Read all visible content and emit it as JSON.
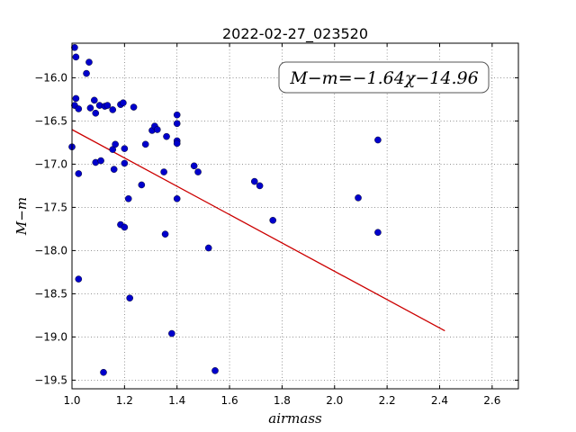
{
  "chart_data": {
    "type": "scatter",
    "title": "2022-02-27_023520",
    "xlabel": "airmass",
    "ylabel": "M−m",
    "xlim": [
      1.0,
      2.7
    ],
    "ylim": [
      -19.6,
      -15.6
    ],
    "xticks": [
      1.0,
      1.2,
      1.4,
      1.6,
      1.8,
      2.0,
      2.2,
      2.4,
      2.6
    ],
    "xtick_labels": [
      "1.0",
      "1.2",
      "1.4",
      "1.6",
      "1.8",
      "2.0",
      "2.2",
      "2.4",
      "2.6"
    ],
    "yticks": [
      -16.0,
      -16.5,
      -17.0,
      -17.5,
      -18.0,
      -18.5,
      -19.0,
      -19.5
    ],
    "ytick_labels": [
      "−16.0",
      "−16.5",
      "−17.0",
      "−17.5",
      "−18.0",
      "−18.5",
      "−19.0",
      "−19.5"
    ],
    "grid": true,
    "annotation": "M−m=−1.64χ−14.96",
    "fit": {
      "slope": -1.64,
      "intercept": -14.96,
      "x_range": [
        1.0,
        2.42
      ],
      "color": "#cc0000"
    },
    "marker_color": "#0000cc",
    "points": [
      {
        "x": 1.01,
        "y": -15.65
      },
      {
        "x": 1.015,
        "y": -15.76
      },
      {
        "x": 1.055,
        "y": -15.95
      },
      {
        "x": 1.065,
        "y": -15.82
      },
      {
        "x": 1.015,
        "y": -16.24
      },
      {
        "x": 1.01,
        "y": -16.32
      },
      {
        "x": 1.025,
        "y": -16.36
      },
      {
        "x": 1.07,
        "y": -16.35
      },
      {
        "x": 1.085,
        "y": -16.26
      },
      {
        "x": 1.09,
        "y": -16.41
      },
      {
        "x": 1.105,
        "y": -16.32
      },
      {
        "x": 1.125,
        "y": -16.33
      },
      {
        "x": 1.135,
        "y": -16.32
      },
      {
        "x": 1.155,
        "y": -16.37
      },
      {
        "x": 1.185,
        "y": -16.31
      },
      {
        "x": 1.195,
        "y": -16.29
      },
      {
        "x": 1.235,
        "y": -16.34
      },
      {
        "x": 1.0,
        "y": -16.8
      },
      {
        "x": 1.025,
        "y": -17.11
      },
      {
        "x": 1.09,
        "y": -16.98
      },
      {
        "x": 1.11,
        "y": -16.96
      },
      {
        "x": 1.155,
        "y": -16.83
      },
      {
        "x": 1.165,
        "y": -16.77
      },
      {
        "x": 1.16,
        "y": -17.06
      },
      {
        "x": 1.2,
        "y": -16.82
      },
      {
        "x": 1.2,
        "y": -16.99
      },
      {
        "x": 1.215,
        "y": -17.4
      },
      {
        "x": 1.185,
        "y": -17.7
      },
      {
        "x": 1.2,
        "y": -17.73
      },
      {
        "x": 1.265,
        "y": -17.24
      },
      {
        "x": 1.28,
        "y": -16.77
      },
      {
        "x": 1.305,
        "y": -16.61
      },
      {
        "x": 1.315,
        "y": -16.56
      },
      {
        "x": 1.325,
        "y": -16.6
      },
      {
        "x": 1.36,
        "y": -16.68
      },
      {
        "x": 1.35,
        "y": -17.09
      },
      {
        "x": 1.4,
        "y": -16.43
      },
      {
        "x": 1.4,
        "y": -16.53
      },
      {
        "x": 1.4,
        "y": -16.73
      },
      {
        "x": 1.4,
        "y": -16.76
      },
      {
        "x": 1.4,
        "y": -17.4
      },
      {
        "x": 1.355,
        "y": -17.81
      },
      {
        "x": 1.465,
        "y": -17.02
      },
      {
        "x": 1.48,
        "y": -17.09
      },
      {
        "x": 1.52,
        "y": -17.97
      },
      {
        "x": 1.695,
        "y": -17.2
      },
      {
        "x": 1.715,
        "y": -17.25
      },
      {
        "x": 1.765,
        "y": -17.65
      },
      {
        "x": 2.09,
        "y": -17.39
      },
      {
        "x": 2.165,
        "y": -16.72
      },
      {
        "x": 2.165,
        "y": -17.79
      },
      {
        "x": 1.025,
        "y": -18.33
      },
      {
        "x": 1.22,
        "y": -18.55
      },
      {
        "x": 1.38,
        "y": -18.96
      },
      {
        "x": 1.12,
        "y": -19.41
      },
      {
        "x": 1.545,
        "y": -19.39
      }
    ]
  }
}
